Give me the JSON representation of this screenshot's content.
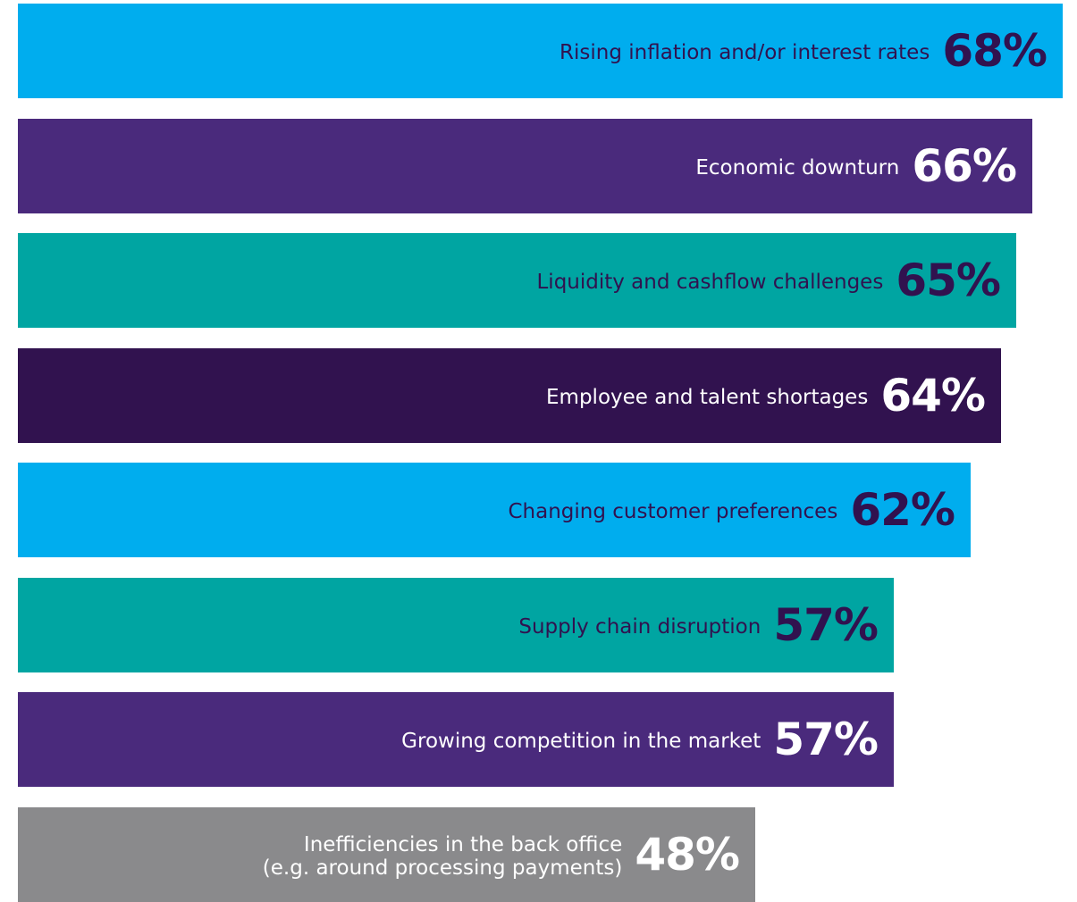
{
  "chart_data": {
    "type": "bar",
    "orientation": "horizontal",
    "categories": [
      "Rising inflation and/or interest rates",
      "Economic downturn",
      "Liquidity and cashflow challenges",
      "Employee and talent shortages",
      "Changing customer preferences",
      "Supply chain disruption",
      "Growing competition in the market",
      "Inefficiencies in the back office\n(e.g. around processing payments)"
    ],
    "values": [
      68,
      66,
      65,
      64,
      62,
      57,
      57,
      48
    ],
    "value_labels": [
      "68%",
      "66%",
      "65%",
      "64%",
      "62%",
      "57%",
      "57%",
      "48%"
    ],
    "bar_colors": [
      "#00adee",
      "#4a2a7c",
      "#00a5a2",
      "#31124f",
      "#00adee",
      "#00a5a2",
      "#4a2a7c",
      "#8a8a8c"
    ],
    "text_colors": [
      "#31124f",
      "#ffffff",
      "#31124f",
      "#ffffff",
      "#31124f",
      "#31124f",
      "#ffffff",
      "#ffffff"
    ],
    "title": "",
    "xlabel": "",
    "ylabel": "",
    "xlim": [
      0,
      70
    ],
    "grid": false,
    "legend": "none"
  }
}
